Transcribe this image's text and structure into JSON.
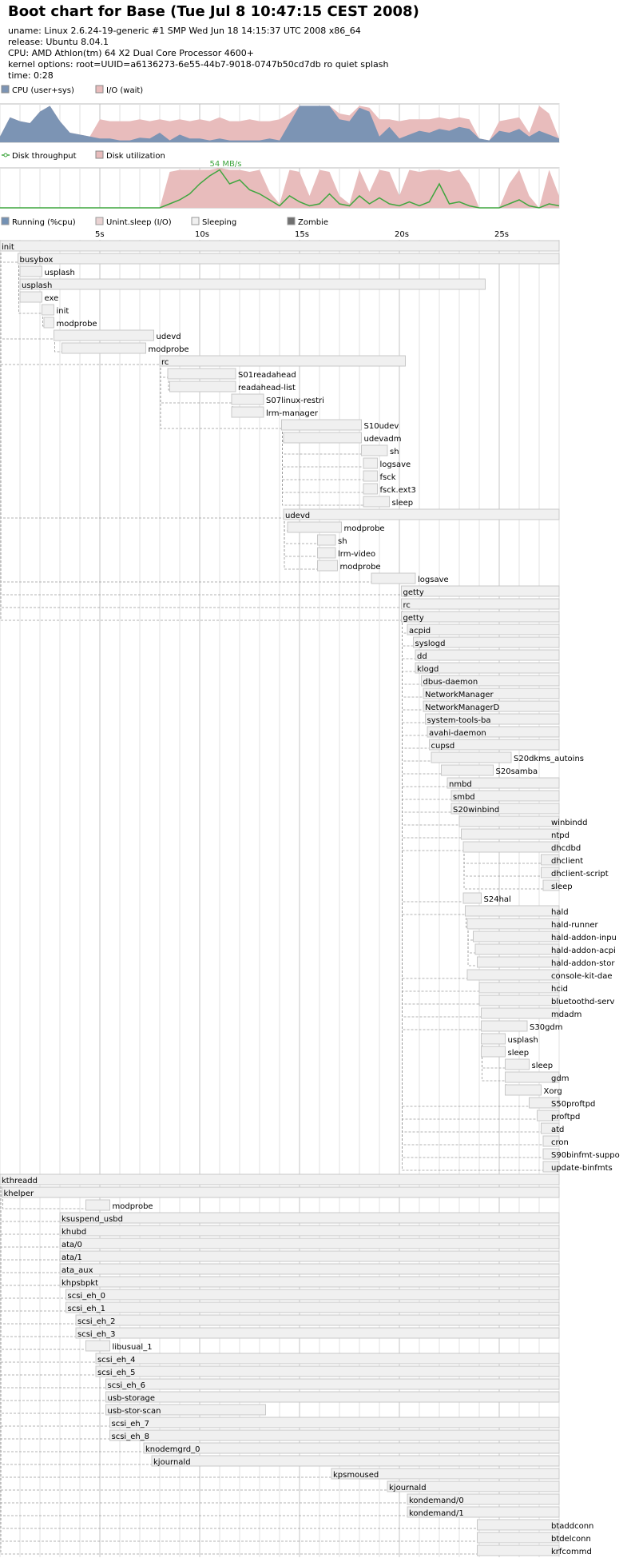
{
  "header": {
    "title": "Boot chart for Base (Tue Jul 8 10:47:15 CEST 2008)",
    "uname": "uname: Linux 2.6.24-19-generic #1 SMP Wed Jun 18 14:15:37 UTC 2008 x86_64",
    "release": "release: Ubuntu 8.04.1",
    "cpu": "CPU: AMD Athlon(tm) 64 X2 Dual Core Processor 4600+",
    "kernel": "kernel options: root=UUID=a6136273-6e55-44b7-9018-0747b50cd7db ro quiet splash",
    "time": "time: 0:28"
  },
  "colors": {
    "cpu": "#7c94b4",
    "io": "#e8bcbc",
    "sleep_box": "#f0f0f0",
    "box_border": "#c8c8c8",
    "grid": "#d8d8d8",
    "zombie": "#707070",
    "throughput": "#3fa63f",
    "running": "#7391b4",
    "unint": "#d89a9a"
  },
  "cpu_chart": {
    "legend": [
      "CPU (user+sys)",
      "I/O (wait)"
    ]
  },
  "disk_chart": {
    "legend": [
      "Disk throughput",
      "Disk utilization"
    ],
    "peak_label": "54 MB/s"
  },
  "process_legend": [
    "Running (%cpu)",
    "Unint.sleep (I/O)",
    "Sleeping",
    "Zombie"
  ],
  "chart_data": [
    {
      "type": "area",
      "name": "cpu",
      "x": [
        0,
        0.5,
        1,
        1.5,
        2,
        2.5,
        3,
        3.5,
        4,
        4.5,
        5,
        5.5,
        6,
        6.5,
        7,
        7.5,
        8,
        8.5,
        9,
        9.5,
        10,
        10.5,
        11,
        11.5,
        12,
        12.5,
        13,
        13.5,
        14,
        14.5,
        15,
        15.5,
        16,
        16.5,
        17,
        17.5,
        18,
        18.5,
        19,
        19.5,
        20,
        20.5,
        21,
        21.5,
        22,
        22.5,
        23,
        23.5,
        24,
        24.5,
        25,
        25.5,
        26,
        26.5,
        27,
        27.5,
        28
      ],
      "series": [
        {
          "values": [
            0.15,
            0.65,
            0.55,
            0.5,
            0.8,
            0.95,
            0.55,
            0.25,
            0.2,
            0.15,
            0.1,
            0.1,
            0.05,
            0.05,
            0.12,
            0.1,
            0.25,
            0.05,
            0.2,
            0.1,
            0.1,
            0.05,
            0.1,
            0.05,
            0.05,
            0.05,
            0.05,
            0.1,
            0.05,
            0.5,
            0.95,
            0.95,
            0.95,
            0.95,
            0.6,
            0.55,
            0.9,
            0.8,
            0.15,
            0.4,
            0.1,
            0.2,
            0.3,
            0.25,
            0.35,
            0.3,
            0.4,
            0.35,
            0.1,
            0.05,
            0.3,
            0.25,
            0.35,
            0.15,
            0.3,
            0.2,
            0.1
          ]
        },
        {
          "values": [
            0.15,
            0.65,
            0.55,
            0.5,
            0.8,
            0.95,
            0.55,
            0.25,
            0.2,
            0.15,
            0.6,
            0.55,
            0.55,
            0.55,
            0.6,
            0.55,
            0.6,
            0.55,
            0.6,
            0.55,
            0.6,
            0.55,
            0.65,
            0.55,
            0.55,
            0.6,
            0.55,
            0.55,
            0.6,
            0.75,
            0.95,
            0.95,
            0.95,
            0.95,
            0.75,
            0.7,
            0.95,
            0.9,
            0.6,
            0.6,
            0.55,
            0.6,
            0.6,
            0.6,
            0.65,
            0.6,
            0.65,
            0.6,
            0.1,
            0.05,
            0.55,
            0.6,
            0.65,
            0.25,
            0.95,
            0.75,
            0.1
          ]
        }
      ],
      "xlim": [
        0,
        28
      ],
      "ylim": [
        0,
        1
      ]
    },
    {
      "type": "area",
      "name": "disk",
      "x": [
        0,
        0.5,
        1,
        1.5,
        2,
        2.5,
        3,
        3.5,
        4,
        4.5,
        5,
        5.5,
        6,
        6.5,
        7,
        7.5,
        8,
        8.5,
        9,
        9.5,
        10,
        10.5,
        11,
        11.5,
        12,
        12.5,
        13,
        13.5,
        14,
        14.5,
        15,
        15.5,
        16,
        16.5,
        17,
        17.5,
        18,
        18.5,
        19,
        19.5,
        20,
        20.5,
        21,
        21.5,
        22,
        22.5,
        23,
        23.5,
        24,
        24.5,
        25,
        25.5,
        26,
        26.5,
        27,
        27.5,
        28
      ],
      "series": [
        {
          "values": [
            0,
            0,
            0,
            0,
            0,
            0,
            0,
            0,
            0,
            0,
            0,
            0,
            0,
            0,
            0,
            0,
            0,
            0.9,
            0.95,
            0.95,
            0.95,
            0.95,
            1,
            0.95,
            0.95,
            0.9,
            0.95,
            0.4,
            0.1,
            0.95,
            0.9,
            0.3,
            0.95,
            0.9,
            0.3,
            0.1,
            0.95,
            0.4,
            0.95,
            0.9,
            0.3,
            0.95,
            0.9,
            0.95,
            0.95,
            0.9,
            0.95,
            0.6,
            0,
            0,
            0,
            0.6,
            0.95,
            0.3,
            0,
            0.95,
            0.3
          ]
        },
        {
          "values": [
            0,
            0,
            0,
            0,
            0,
            0,
            0,
            0,
            0,
            0,
            0,
            0,
            0,
            0,
            0,
            0,
            0,
            0.1,
            0.2,
            0.35,
            0.6,
            0.8,
            0.95,
            0.6,
            0.7,
            0.45,
            0.35,
            0.2,
            0.05,
            0.3,
            0.15,
            0.05,
            0.1,
            0.35,
            0.1,
            0.05,
            0.3,
            0.1,
            0.25,
            0.1,
            0.05,
            0.15,
            0.05,
            0.15,
            0.6,
            0.1,
            0.15,
            0.05,
            0,
            0,
            0,
            0.1,
            0.2,
            0.05,
            0,
            0.1,
            0.05
          ]
        }
      ],
      "xlim": [
        0,
        28
      ],
      "ylim": [
        0,
        1
      ]
    },
    {
      "type": "timeline",
      "name": "processes",
      "xticks": [
        "5s",
        "10s",
        "15s",
        "20s",
        "25s"
      ],
      "xlim": [
        0,
        28
      ],
      "rows": [
        {
          "label": "init",
          "start": 0,
          "end": 28,
          "parent": -1
        },
        {
          "label": "busybox",
          "start": 0.9,
          "end": 28,
          "parent": 0
        },
        {
          "label": "usplash",
          "start": 1,
          "end": 2.1,
          "parent": 1
        },
        {
          "label": "usplash",
          "start": 1,
          "end": 24.3,
          "parent": 1
        },
        {
          "label": "exe",
          "start": 1,
          "end": 2.1,
          "parent": 1
        },
        {
          "label": "init",
          "start": 2.1,
          "end": 2.7,
          "parent": 1
        },
        {
          "label": "modprobe",
          "start": 2.2,
          "end": 2.7,
          "parent": 5
        },
        {
          "label": "udevd",
          "start": 2.7,
          "end": 7.7,
          "parent": 0
        },
        {
          "label": "modprobe",
          "start": 3.1,
          "end": 7.3,
          "parent": 7
        },
        {
          "label": "rc",
          "start": 8,
          "end": 20.3,
          "parent": 0
        },
        {
          "label": "S01readahead",
          "start": 8.4,
          "end": 11.8,
          "parent": 9
        },
        {
          "label": "readahead-list",
          "start": 8.5,
          "end": 11.8,
          "parent": 10
        },
        {
          "label": "S07linux-restri",
          "start": 11.6,
          "end": 13.2,
          "parent": 9
        },
        {
          "label": "lrm-manager",
          "start": 11.6,
          "end": 13.2,
          "parent": 12
        },
        {
          "label": "S10udev",
          "start": 14.1,
          "end": 18.1,
          "parent": 9
        },
        {
          "label": "udevadm",
          "start": 14.2,
          "end": 18.1,
          "parent": 14
        },
        {
          "label": "sh",
          "start": 18.1,
          "end": 19.4,
          "parent": 14
        },
        {
          "label": "logsave",
          "start": 18.2,
          "end": 18.9,
          "parent": 14
        },
        {
          "label": "fsck",
          "start": 18.2,
          "end": 18.9,
          "parent": 14
        },
        {
          "label": "fsck.ext3",
          "start": 18.2,
          "end": 18.9,
          "parent": 14
        },
        {
          "label": "sleep",
          "start": 18.2,
          "end": 19.5,
          "parent": 14
        },
        {
          "label": "udevd",
          "start": 14.2,
          "end": 28,
          "parent": 0
        },
        {
          "label": "modprobe",
          "start": 14.4,
          "end": 17.1,
          "parent": 21
        },
        {
          "label": "sh",
          "start": 15.9,
          "end": 16.8,
          "parent": 21
        },
        {
          "label": "lrm-video",
          "start": 15.9,
          "end": 16.8,
          "parent": 21
        },
        {
          "label": "modprobe",
          "start": 15.9,
          "end": 16.9,
          "parent": 21
        },
        {
          "label": "logsave",
          "start": 18.6,
          "end": 20.8,
          "parent": 0
        },
        {
          "label": "getty",
          "start": 20.1,
          "end": 28,
          "parent": 0
        },
        {
          "label": "rc",
          "start": 20.1,
          "end": 28,
          "parent": 0
        },
        {
          "label": "getty",
          "start": 20.1,
          "end": 28,
          "parent": 0
        },
        {
          "label": "acpid",
          "start": 20.4,
          "end": 28,
          "parent": 28
        },
        {
          "label": "syslogd",
          "start": 20.7,
          "end": 28,
          "parent": 28
        },
        {
          "label": "dd",
          "start": 20.8,
          "end": 28,
          "parent": 28
        },
        {
          "label": "klogd",
          "start": 20.8,
          "end": 28,
          "parent": 28
        },
        {
          "label": "dbus-daemon",
          "start": 21.1,
          "end": 28,
          "parent": 28
        },
        {
          "label": "NetworkManager",
          "start": 21.2,
          "end": 28,
          "parent": 28
        },
        {
          "label": "NetworkManagerD",
          "start": 21.2,
          "end": 28,
          "parent": 28
        },
        {
          "label": "system-tools-ba",
          "start": 21.3,
          "end": 28,
          "parent": 28
        },
        {
          "label": "avahi-daemon",
          "start": 21.4,
          "end": 28,
          "parent": 28
        },
        {
          "label": "cupsd",
          "start": 21.5,
          "end": 28,
          "parent": 28
        },
        {
          "label": "S20dkms_autoins",
          "start": 21.6,
          "end": 25.6,
          "parent": 28
        },
        {
          "label": "S20samba",
          "start": 22.1,
          "end": 24.7,
          "parent": 28
        },
        {
          "label": "nmbd",
          "start": 22.4,
          "end": 28,
          "parent": 28
        },
        {
          "label": "smbd",
          "start": 22.6,
          "end": 28,
          "parent": 28
        },
        {
          "label": "S20winbind",
          "start": 22.6,
          "end": 28,
          "parent": 28
        },
        {
          "label": "winbindd",
          "start": 23,
          "end": 28,
          "parent": 28
        },
        {
          "label": "ntpd",
          "start": 23.1,
          "end": 28,
          "parent": 28
        },
        {
          "label": "dhcdbd",
          "start": 23.2,
          "end": 28,
          "parent": 28
        },
        {
          "label": "dhclient",
          "start": 27.1,
          "end": 28,
          "parent": 47
        },
        {
          "label": "dhclient-script",
          "start": 27.1,
          "end": 28,
          "parent": 47
        },
        {
          "label": "sleep",
          "start": 27.2,
          "end": 28,
          "parent": 47
        },
        {
          "label": "S24hal",
          "start": 23.2,
          "end": 24.1,
          "parent": 28
        },
        {
          "label": "hald",
          "start": 23.3,
          "end": 28,
          "parent": 28
        },
        {
          "label": "hald-runner",
          "start": 23.4,
          "end": 28,
          "parent": 52
        },
        {
          "label": "hald-addon-inpu",
          "start": 23.7,
          "end": 28,
          "parent": 53
        },
        {
          "label": "hald-addon-acpi",
          "start": 23.8,
          "end": 28,
          "parent": 53
        },
        {
          "label": "hald-addon-stor",
          "start": 23.9,
          "end": 28,
          "parent": 53
        },
        {
          "label": "console-kit-dae",
          "start": 23.4,
          "end": 28,
          "parent": 28
        },
        {
          "label": "hcid",
          "start": 24.0,
          "end": 28,
          "parent": 28
        },
        {
          "label": "bluetoothd-serv",
          "start": 24.0,
          "end": 28,
          "parent": 28
        },
        {
          "label": "mdadm",
          "start": 24.1,
          "end": 28,
          "parent": 28
        },
        {
          "label": "S30gdm",
          "start": 24.1,
          "end": 26.4,
          "parent": 28
        },
        {
          "label": "usplash",
          "start": 24.1,
          "end": 25.3,
          "parent": 61
        },
        {
          "label": "sleep",
          "start": 24.1,
          "end": 25.3,
          "parent": 61
        },
        {
          "label": "sleep",
          "start": 25.3,
          "end": 26.5,
          "parent": 61
        },
        {
          "label": "gdm",
          "start": 25.3,
          "end": 28,
          "parent": 61
        },
        {
          "label": "Xorg",
          "start": 25.3,
          "end": 27.1,
          "parent": 65
        },
        {
          "label": "S50proftpd",
          "start": 26.5,
          "end": 28,
          "parent": 28
        },
        {
          "label": "proftpd",
          "start": 26.9,
          "end": 28,
          "parent": 28
        },
        {
          "label": "atd",
          "start": 27.1,
          "end": 28,
          "parent": 28
        },
        {
          "label": "cron",
          "start": 27.2,
          "end": 28,
          "parent": 28
        },
        {
          "label": "S90binfmt-suppo",
          "start": 27.2,
          "end": 28,
          "parent": 28
        },
        {
          "label": "update-binfmts",
          "start": 27.2,
          "end": 28,
          "parent": 28
        },
        {
          "label": "kthreadd",
          "start": 0,
          "end": 28,
          "parent": -1
        },
        {
          "label": "khelper",
          "start": 0.1,
          "end": 28,
          "parent": 73
        },
        {
          "label": "modprobe",
          "start": 4.3,
          "end": 5.5,
          "parent": 74
        },
        {
          "label": "ksuspend_usbd",
          "start": 3,
          "end": 28,
          "parent": 73
        },
        {
          "label": "khubd",
          "start": 3,
          "end": 28,
          "parent": 73
        },
        {
          "label": "ata/0",
          "start": 3,
          "end": 28,
          "parent": 73
        },
        {
          "label": "ata/1",
          "start": 3,
          "end": 28,
          "parent": 73
        },
        {
          "label": "ata_aux",
          "start": 3,
          "end": 28,
          "parent": 73
        },
        {
          "label": "khpsbpkt",
          "start": 3,
          "end": 28,
          "parent": 73
        },
        {
          "label": "scsi_eh_0",
          "start": 3.3,
          "end": 28,
          "parent": 73
        },
        {
          "label": "scsi_eh_1",
          "start": 3.3,
          "end": 28,
          "parent": 73
        },
        {
          "label": "scsi_eh_2",
          "start": 3.8,
          "end": 28,
          "parent": 73
        },
        {
          "label": "scsi_eh_3",
          "start": 3.8,
          "end": 28,
          "parent": 73
        },
        {
          "label": "libusual_1",
          "start": 4.3,
          "end": 5.5,
          "parent": 73
        },
        {
          "label": "scsi_eh_4",
          "start": 4.8,
          "end": 28,
          "parent": 73
        },
        {
          "label": "scsi_eh_5",
          "start": 4.8,
          "end": 28,
          "parent": 73
        },
        {
          "label": "scsi_eh_6",
          "start": 5.3,
          "end": 28,
          "parent": 73
        },
        {
          "label": "usb-storage",
          "start": 5.3,
          "end": 28,
          "parent": 73
        },
        {
          "label": "usb-stor-scan",
          "start": 5.3,
          "end": 13.3,
          "parent": 73
        },
        {
          "label": "scsi_eh_7",
          "start": 5.5,
          "end": 28,
          "parent": 73
        },
        {
          "label": "scsi_eh_8",
          "start": 5.5,
          "end": 28,
          "parent": 73
        },
        {
          "label": "knodemgrd_0",
          "start": 7.2,
          "end": 28,
          "parent": 73
        },
        {
          "label": "kjournald",
          "start": 7.6,
          "end": 28,
          "parent": 73
        },
        {
          "label": "kpsmoused",
          "start": 16.6,
          "end": 28,
          "parent": 73
        },
        {
          "label": "kjournald",
          "start": 19.4,
          "end": 28,
          "parent": 73
        },
        {
          "label": "kondemand/0",
          "start": 20.4,
          "end": 28,
          "parent": 73
        },
        {
          "label": "kondemand/1",
          "start": 20.4,
          "end": 28,
          "parent": 73
        },
        {
          "label": "btaddconn",
          "start": 23.9,
          "end": 28,
          "parent": 73
        },
        {
          "label": "btdelconn",
          "start": 23.9,
          "end": 28,
          "parent": 73
        },
        {
          "label": "krfcommd",
          "start": 23.9,
          "end": 28,
          "parent": 73
        }
      ]
    }
  ]
}
